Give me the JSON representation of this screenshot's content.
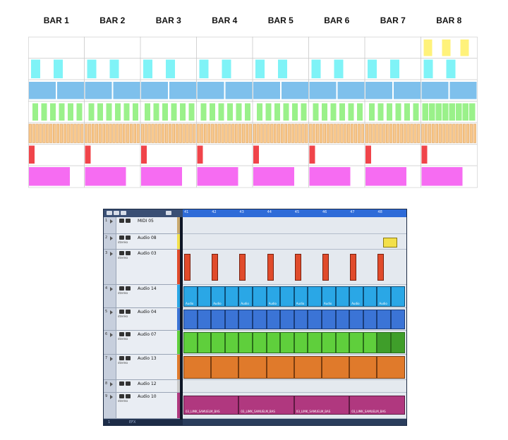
{
  "bar_headers": [
    "BAR 1",
    "BAR 2",
    "BAR 3",
    "BAR 4",
    "BAR 5",
    "BAR 6",
    "BAR 7",
    "BAR 8"
  ],
  "colors": {
    "yellow": "#fff27a",
    "cyan": "#7ff3f7",
    "blue": "#7ec0ec",
    "green": "#9af18a",
    "orange": "#f9c98d",
    "red": "#f0444a",
    "magenta": "#f66cf2"
  },
  "daw": {
    "ruler_numbers": [
      "41",
      "42",
      "43",
      "44",
      "45",
      "46",
      "47",
      "48"
    ],
    "footer_labels": [
      "1",
      "EFX"
    ],
    "tracks": [
      {
        "num": "1",
        "name": "MIDI 05",
        "sub": "",
        "color": "#c9a96e"
      },
      {
        "num": "2",
        "name": "Audio 08",
        "sub": "stereo",
        "color": "#f3e04a"
      },
      {
        "num": "3",
        "name": "Audio 03",
        "sub": "stereo",
        "color": "#e04b2b"
      },
      {
        "num": "4",
        "name": "Audio 14",
        "sub": "stereo",
        "color": "#2aa7e6"
      },
      {
        "num": "5",
        "name": "Audio 04",
        "sub": "stereo",
        "color": "#3b74d6"
      },
      {
        "num": "6",
        "name": "Audio 07",
        "sub": "stereo",
        "color": "#5fcf3c"
      },
      {
        "num": "7",
        "name": "Audio 13",
        "sub": "stereo",
        "color": "#e07a2b"
      },
      {
        "num": "8",
        "name": "Audio 12",
        "sub": "",
        "color": "#c9c9c9"
      },
      {
        "num": "9",
        "name": "Audio 10",
        "sub": "stereo",
        "color": "#b0387f"
      }
    ],
    "clip_labels": {
      "audio14": "Audio",
      "audio10": "03_LIMK_SAMUELM_BAS"
    }
  }
}
